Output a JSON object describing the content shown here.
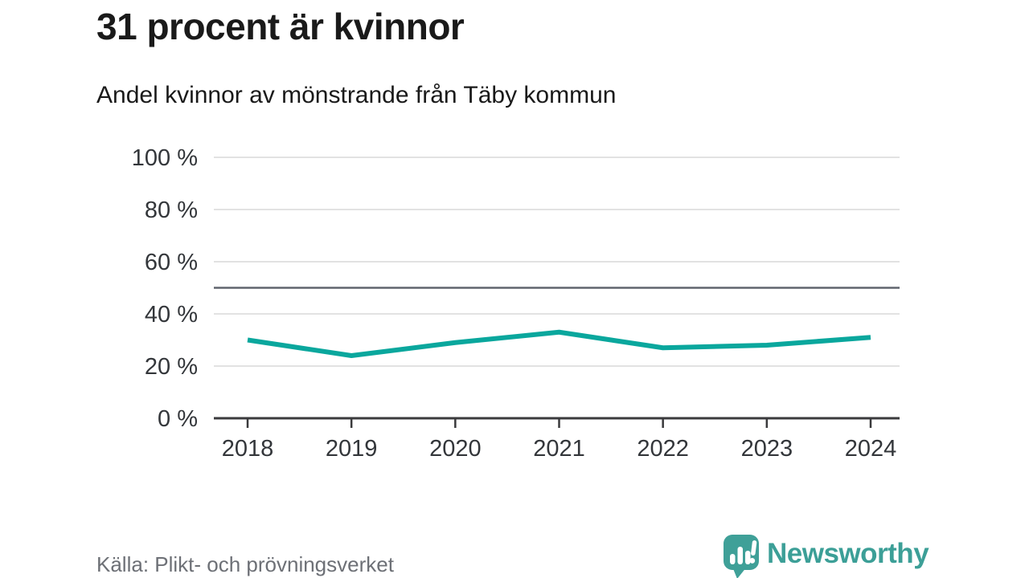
{
  "header": {
    "title": "31 procent är kvinnor",
    "subtitle": "Andel kvinnor av mönstrande från Täby kommun"
  },
  "footer": {
    "source": "Källa: Plikt- och prövningsverket",
    "brand": "Newsworthy"
  },
  "colors": {
    "line": "#0aa79d",
    "grid": "#e2e2e2",
    "reference_line": "#60656e",
    "axis": "#3a3a3c",
    "tick_text": "#33363a",
    "muted_text": "#6d7076",
    "brand_teal": "#3c9f97",
    "title_text": "#1a1a1a"
  },
  "chart_data": {
    "type": "line",
    "title": "31 procent är kvinnor",
    "subtitle": "Andel kvinnor av mönstrande från Täby kommun",
    "x": [
      2018,
      2019,
      2020,
      2021,
      2022,
      2023,
      2024
    ],
    "xticks": [
      "2018",
      "2019",
      "2020",
      "2021",
      "2022",
      "2023",
      "2024"
    ],
    "series": [
      {
        "name": "Andel kvinnor av mönstrande",
        "color": "#0aa79d",
        "values": [
          30,
          24,
          29,
          33,
          27,
          28,
          31
        ]
      }
    ],
    "xlabel": "",
    "ylabel": "",
    "ylim": [
      0,
      100
    ],
    "ytick_step": 20,
    "yticks": [
      "0 %",
      "20 %",
      "40 %",
      "60 %",
      "80 %",
      "100 %"
    ],
    "reference_line": 50,
    "grid": "horizontal",
    "legend": "none",
    "source": "Källa: Plikt- och prövningsverket"
  }
}
